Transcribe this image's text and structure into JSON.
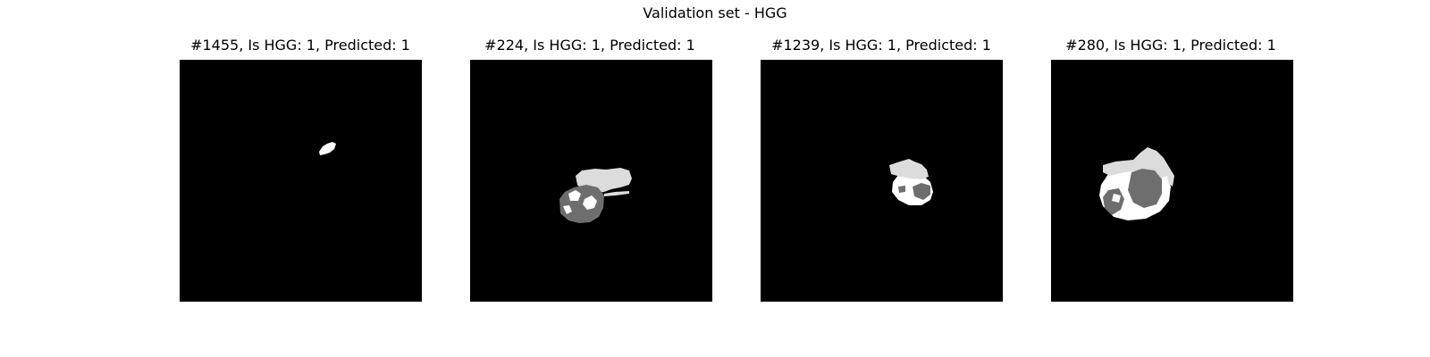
{
  "figure": {
    "title": "Validation set - HGG"
  },
  "panels": [
    {
      "title": "#1455, Is HGG: 1, Predicted: 1"
    },
    {
      "title": "#224, Is HGG: 1, Predicted: 1"
    },
    {
      "title": "#1239, Is HGG: 1, Predicted: 1"
    },
    {
      "title": "#280, Is HGG: 1, Predicted: 1"
    }
  ],
  "colors": {
    "background": "#000000",
    "white_region": "#ffffff",
    "light_gray_region": "#dcdcdc",
    "dark_gray_region": "#6e6e6e"
  }
}
